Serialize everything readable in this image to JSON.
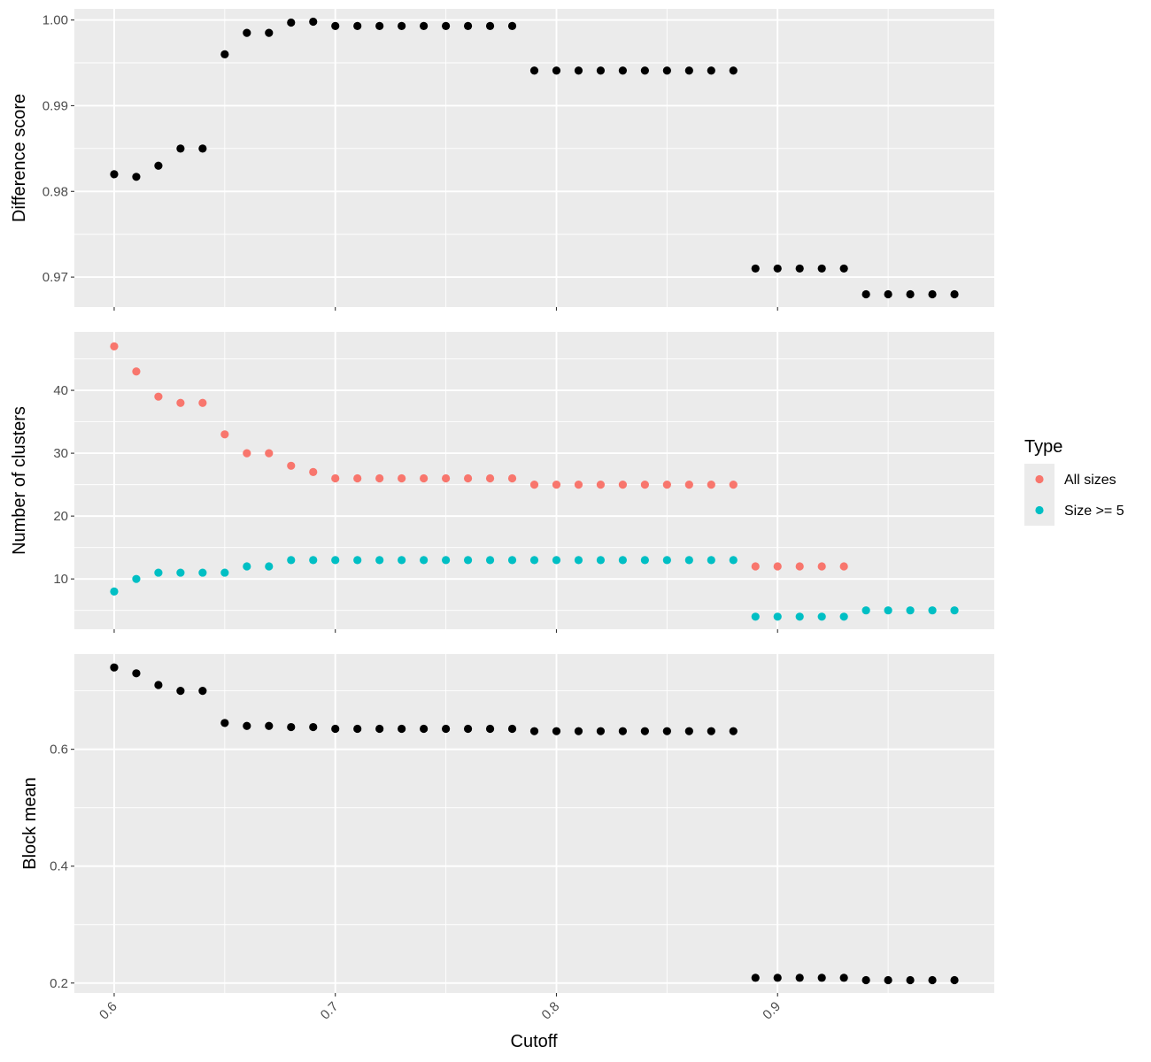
{
  "chart_data": {
    "type": "scatter",
    "xlabel": "Cutoff",
    "xlim": [
      0.582,
      0.998
    ],
    "x_ticks": [
      0.6,
      0.7,
      0.8,
      0.9
    ],
    "x_tick_labels": [
      "0.6",
      "0.7",
      "0.8",
      "0.9"
    ],
    "x": [
      0.6,
      0.61,
      0.62,
      0.63,
      0.64,
      0.65,
      0.66,
      0.67,
      0.68,
      0.69,
      0.7,
      0.71,
      0.72,
      0.73,
      0.74,
      0.75,
      0.76,
      0.77,
      0.78,
      0.79,
      0.8,
      0.81,
      0.82,
      0.83,
      0.84,
      0.85,
      0.86,
      0.87,
      0.88,
      0.89,
      0.9,
      0.91,
      0.92,
      0.93,
      0.94,
      0.95,
      0.96,
      0.97,
      0.98
    ],
    "panels": [
      {
        "ylabel": "Difference score",
        "ylim": [
          0.9665,
          1.0013
        ],
        "y_ticks": [
          0.97,
          0.98,
          0.99,
          1.0
        ],
        "y_tick_labels": [
          "0.97",
          "0.98",
          "0.99",
          "1.00"
        ],
        "series": [
          {
            "color": "#000000",
            "values": [
              0.982,
              0.9817,
              0.983,
              0.985,
              0.985,
              0.996,
              0.9985,
              0.9985,
              0.9997,
              0.9998,
              0.9993,
              0.9993,
              0.9993,
              0.9993,
              0.9993,
              0.9993,
              0.9993,
              0.9993,
              0.9993,
              0.9941,
              0.9941,
              0.9941,
              0.9941,
              0.9941,
              0.9941,
              0.9941,
              0.9941,
              0.9941,
              0.9941,
              0.971,
              0.971,
              0.971,
              0.971,
              0.971,
              0.968,
              0.968,
              0.968,
              0.968,
              0.968
            ]
          }
        ]
      },
      {
        "ylabel": "Number of clusters",
        "ylim": [
          2.0,
          49.3
        ],
        "y_ticks": [
          10,
          20,
          30,
          40
        ],
        "y_tick_labels": [
          "10",
          "20",
          "30",
          "40"
        ],
        "series": [
          {
            "name": "All sizes",
            "color": "#F8766D",
            "values": [
              47,
              43,
              39,
              38,
              38,
              33,
              30,
              30,
              28,
              27,
              26,
              26,
              26,
              26,
              26,
              26,
              26,
              26,
              26,
              25,
              25,
              25,
              25,
              25,
              25,
              25,
              25,
              25,
              25,
              12,
              12,
              12,
              12,
              12,
              null,
              null,
              null,
              null,
              null
            ]
          },
          {
            "name": "Size >= 5",
            "color": "#00BFC4",
            "values": [
              8,
              10,
              11,
              11,
              11,
              11,
              12,
              12,
              13,
              13,
              13,
              13,
              13,
              13,
              13,
              13,
              13,
              13,
              13,
              13,
              13,
              13,
              13,
              13,
              13,
              13,
              13,
              13,
              13,
              4,
              4,
              4,
              4,
              4,
              5,
              5,
              5,
              5,
              5
            ]
          }
        ]
      },
      {
        "ylabel": "Block mean",
        "ylim": [
          0.183,
          0.763
        ],
        "y_ticks": [
          0.2,
          0.4,
          0.6
        ],
        "y_tick_labels": [
          "0.2",
          "0.4",
          "0.6"
        ],
        "series": [
          {
            "color": "#000000",
            "values": [
              0.74,
              0.73,
              0.71,
              0.7,
              0.7,
              0.645,
              0.64,
              0.64,
              0.638,
              0.638,
              0.635,
              0.635,
              0.635,
              0.635,
              0.635,
              0.635,
              0.635,
              0.635,
              0.635,
              0.631,
              0.631,
              0.631,
              0.631,
              0.631,
              0.631,
              0.631,
              0.631,
              0.631,
              0.631,
              0.209,
              0.209,
              0.209,
              0.209,
              0.209,
              0.205,
              0.205,
              0.205,
              0.205,
              0.205
            ]
          }
        ]
      }
    ],
    "legend": {
      "title": "Type",
      "placement": "right",
      "entries": [
        {
          "label": "All sizes",
          "color": "#F8766D"
        },
        {
          "label": "Size >= 5",
          "color": "#00BFC4"
        }
      ]
    },
    "grid": true
  }
}
